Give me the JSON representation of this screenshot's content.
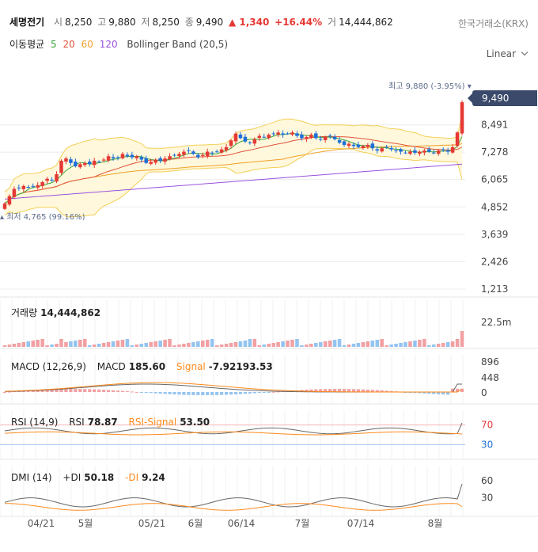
{
  "header": {
    "stock_name": "세명전기",
    "open_label": "시",
    "open": "8,250",
    "high_label": "고",
    "high": "9,880",
    "low_label": "저",
    "low": "8,250",
    "close_label": "종",
    "close": "9,490",
    "change": "▲ 1,340",
    "change_pct": "+16.44%",
    "volume_label": "거",
    "volume": "14,444,862",
    "exchange": "한국거래소(KRX)"
  },
  "ma_legend": {
    "label": "이동평균",
    "ma5": "5",
    "ma20": "20",
    "ma60": "60",
    "ma120": "120",
    "bollinger": "Bollinger Band (20,5)"
  },
  "scale_select": {
    "value": "Linear",
    "icon": "chevron-down-icon"
  },
  "colors": {
    "up": "#e53935",
    "down": "#1e6fd9",
    "ma5": "#3aa63a",
    "ma20": "#e0533a",
    "ma60": "#f0a028",
    "ma120": "#9a52e0",
    "band_fill": "#fff8dc",
    "band_line": "#f3cf55",
    "signal": "#ff8a1c",
    "grid": "#ececec",
    "volume_up": "#f2a0a3",
    "volume_down": "#94c4f0",
    "price_tag": "#3b4a6b"
  },
  "price_panel": {
    "current_price": "9,490",
    "high_note": "최고 9,880 (-3.95%)",
    "low_note": "최저 4,765 (99.16%)",
    "y_ticks": [
      "8,491",
      "7,278",
      "6,065",
      "4,852",
      "3,639",
      "2,426",
      "1,213"
    ]
  },
  "volume_panel": {
    "label": "거래량",
    "value": "14,444,862",
    "y_tick": "22.5m"
  },
  "macd_panel": {
    "label": "MACD (12,26,9)",
    "macd_label": "MACD",
    "macd_value": "185.60",
    "signal_label": "Signal",
    "signal_value": "-7.92193.53",
    "y_ticks": [
      "896",
      "448",
      "0"
    ]
  },
  "rsi_panel": {
    "label": "RSI (14,9)",
    "rsi_label": "RSI",
    "rsi_value": "78.87",
    "signal_label": "RSI-Signal",
    "signal_value": "53.50",
    "y_ticks": [
      "70",
      "30"
    ]
  },
  "dmi_panel": {
    "label": "DMI (14)",
    "plus_label": "+DI",
    "plus_value": "50.18",
    "minus_label": "-DI",
    "minus_value": "9.24",
    "y_ticks": [
      "60",
      "30"
    ]
  },
  "x_axis_labels": [
    "04/21",
    "5월",
    "05/21",
    "6월",
    "06/14",
    "7월",
    "07/14",
    "8월"
  ],
  "chart_data": {
    "type": "candlestick",
    "price_range": [
      1213,
      9880
    ],
    "candles_close": [
      5000,
      5330,
      5650,
      5680,
      5780,
      5720,
      5750,
      5820,
      5950,
      6100,
      6020,
      6300,
      6900,
      7000,
      6800,
      6650,
      6750,
      6800,
      6750,
      6900,
      6850,
      6950,
      7100,
      7000,
      7050,
      7200,
      7100,
      7050,
      7100,
      6950,
      6800,
      6850,
      6950,
      6900,
      7000,
      7100,
      7150,
      7200,
      7300,
      7350,
      7200,
      7050,
      7150,
      7300,
      7250,
      7300,
      7400,
      7500,
      7800,
      8100,
      7900,
      7750,
      7700,
      7850,
      8000,
      7950,
      8050,
      8100,
      8150,
      8050,
      8100,
      8150,
      8000,
      7900,
      7950,
      8050,
      7900,
      7850,
      7950,
      8000,
      7850,
      7700,
      7600,
      7650,
      7550,
      7500,
      7550,
      7600,
      7450,
      7350,
      7450,
      7500,
      7400,
      7350,
      7300,
      7250,
      7300,
      7250,
      7300,
      7350,
      7300,
      7250,
      7350,
      7400,
      7300,
      7500,
      8150,
      9490
    ],
    "ma120_start": 5200,
    "ma120_end": 6750,
    "rsi_last": 78.87,
    "rsi_signal_last": 53.5,
    "macd_last": 185.6,
    "plus_di_last": 50.18,
    "minus_di_last": 9.24
  }
}
